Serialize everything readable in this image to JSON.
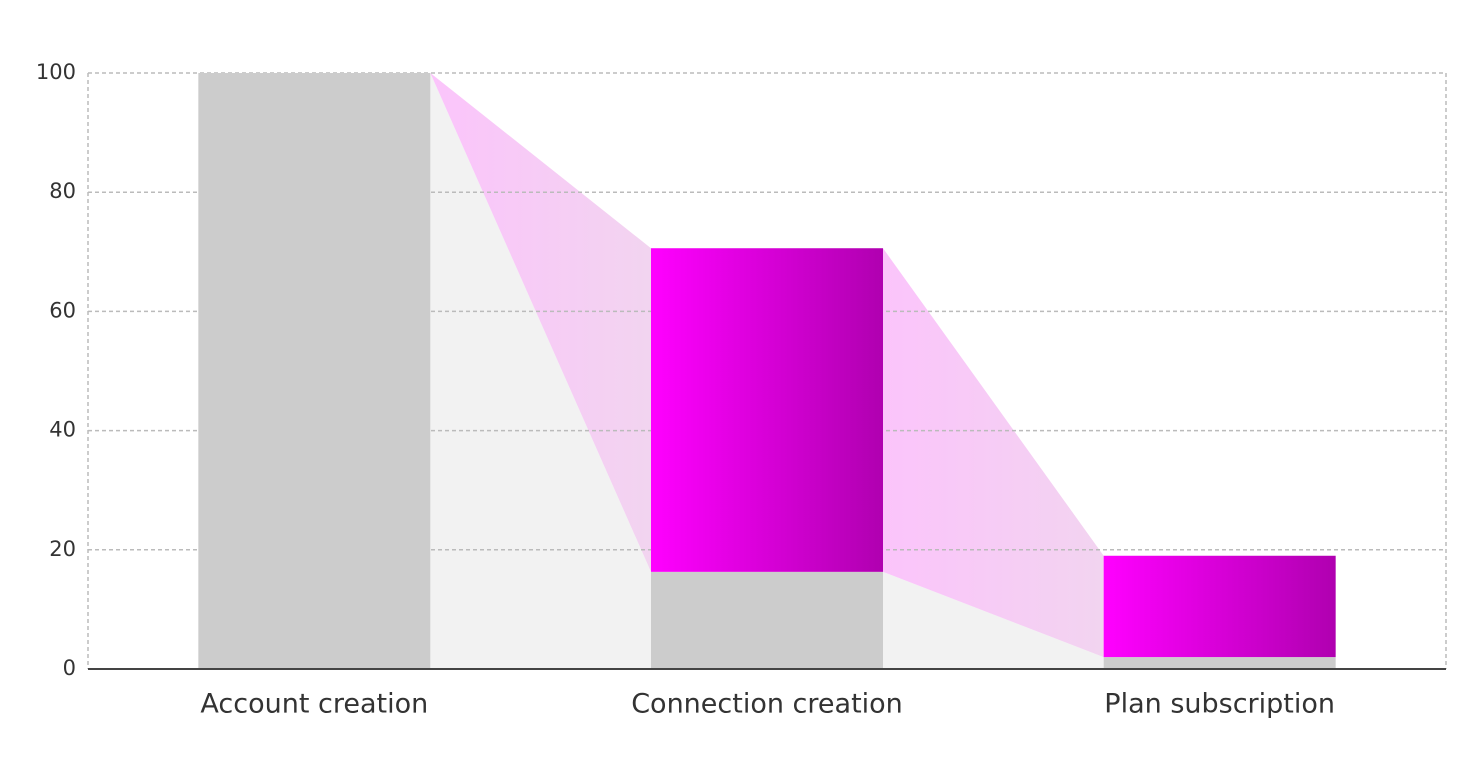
{
  "chart_data": {
    "type": "funnel",
    "categories": [
      "Account creation",
      "Connection creation",
      "Plan subscription"
    ],
    "series": [
      {
        "color": "#cccccc",
        "values": [
          100,
          16.3,
          2
        ]
      },
      {
        "color": "#ff00ff",
        "values": [
          0,
          54.3,
          17
        ]
      }
    ],
    "ylim": [
      0,
      100
    ],
    "yticks": [
      0,
      20,
      40,
      60,
      80,
      100
    ],
    "grid": true
  }
}
